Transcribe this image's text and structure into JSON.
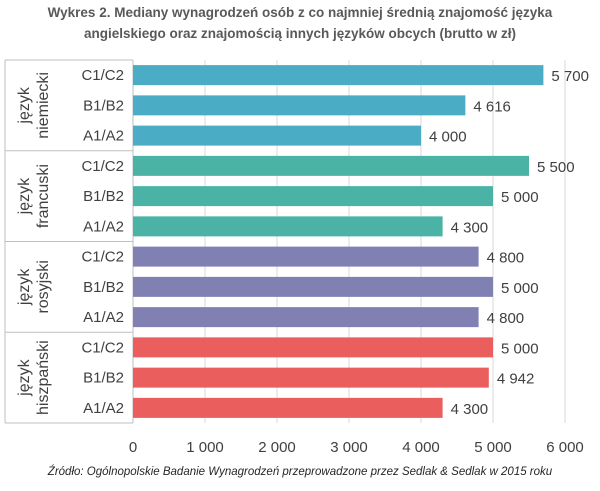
{
  "chart_data": {
    "type": "bar",
    "orientation": "horizontal",
    "title_line1": "Wykres 2. Mediany wynagrodzeń osób z co najmniej średnią znajomość języka",
    "title_line2": "angielskiego oraz znajomością innych języków obcych (brutto w zł)",
    "source": "Źródło: Ogólnopolskie Badanie Wynagrodzeń przeprowadzone przez Sedlak & Sedlak w 2015 roku",
    "xlim": [
      0,
      6000
    ],
    "x_ticks": [
      "0",
      "1 000",
      "2 000",
      "3 000",
      "4 000",
      "5 000",
      "6 000"
    ],
    "tick_values": [
      0,
      1000,
      2000,
      3000,
      4000,
      5000,
      6000
    ],
    "grid": true,
    "groups": [
      {
        "label_line1": "język",
        "label_line2": "niemiecki",
        "color": "#4bacc6",
        "levels": [
          "C1/C2",
          "B1/B2",
          "A1/A2"
        ],
        "values": [
          5700,
          4616,
          4000
        ],
        "value_labels": [
          "5 700",
          "4 616",
          "4 000"
        ]
      },
      {
        "label_line1": "język",
        "label_line2": "francuski",
        "color": "#4bb3a6",
        "levels": [
          "C1/C2",
          "B1/B2",
          "A1/A2"
        ],
        "values": [
          5500,
          5000,
          4300
        ],
        "value_labels": [
          "5 500",
          "5 000",
          "4 300"
        ]
      },
      {
        "label_line1": "język",
        "label_line2": "rosyjski",
        "color": "#8080b3",
        "levels": [
          "C1/C2",
          "B1/B2",
          "A1/A2"
        ],
        "values": [
          4800,
          5000,
          4800
        ],
        "value_labels": [
          "4 800",
          "5 000",
          "4 800"
        ]
      },
      {
        "label_line1": "język",
        "label_line2": "hiszpański",
        "color": "#ea5e5e",
        "levels": [
          "C1/C2",
          "B1/B2",
          "A1/A2"
        ],
        "values": [
          5000,
          4942,
          4300
        ],
        "value_labels": [
          "5 000",
          "4 942",
          "4 300"
        ]
      }
    ]
  }
}
